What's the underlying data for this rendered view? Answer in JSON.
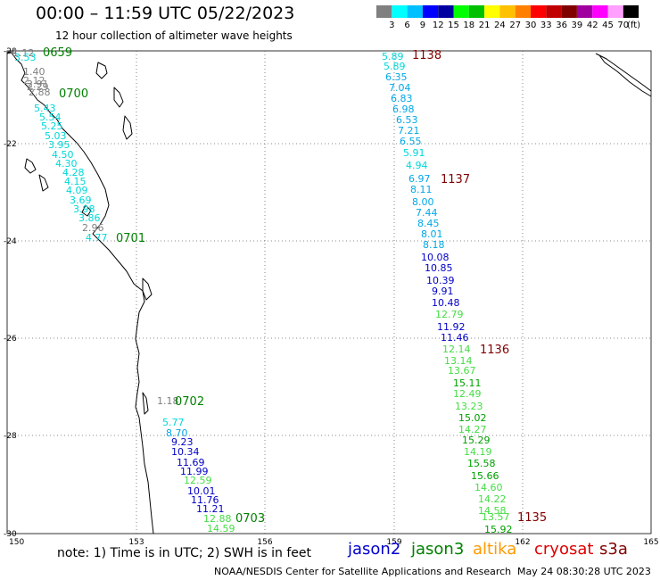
{
  "title": "00:00 – 11:59 UTC 05/22/2023",
  "subtitle": "12 hour collection of altimeter wave heights",
  "legend": {
    "unit": "(ft)",
    "levels": [
      "3",
      "6",
      "9",
      "12",
      "15",
      "18",
      "21",
      "24",
      "27",
      "30",
      "33",
      "36",
      "39",
      "42",
      "45",
      "70"
    ],
    "colors": [
      "#808080",
      "#00ffff",
      "#00c0ff",
      "#0000ff",
      "#0000a0",
      "#00ff00",
      "#00c000",
      "#ffff00",
      "#ffc000",
      "#ff8000",
      "#ff0000",
      "#c00000",
      "#800000",
      "#a000a0",
      "#ff00ff",
      "#ffa0ff",
      "#000000"
    ]
  },
  "map": {
    "lon_labels": [
      "150",
      "153",
      "156",
      "159",
      "162",
      "165"
    ],
    "lat_labels": [
      "-20",
      "-22",
      "-24",
      "-26",
      "-28",
      "-30"
    ],
    "lon_range": [
      150,
      165
    ],
    "lat_range": [
      -20,
      -30
    ]
  },
  "passes": [
    {
      "time": "0659",
      "color": "#008000"
    },
    {
      "time": "0700",
      "color": "#008000"
    },
    {
      "time": "0701",
      "color": "#008000"
    },
    {
      "time": "0702",
      "color": "#008000"
    },
    {
      "time": "0703",
      "color": "#008000"
    },
    {
      "time": "1138",
      "color": "#800000"
    },
    {
      "time": "1137",
      "color": "#800000"
    },
    {
      "time": "1136",
      "color": "#800000"
    },
    {
      "time": "1135",
      "color": "#800000"
    }
  ],
  "wave_heights_west": [
    "1.12",
    "3.53",
    "1.40",
    "2.12",
    "2.29",
    "2.91",
    "2.88",
    "5.43",
    "5.54",
    "5.25",
    "5.03",
    "3.95",
    "4.50",
    "4.30",
    "4.28",
    "4.15",
    "4.09",
    "3.69",
    "3.98",
    "3.86",
    "2.96",
    "4.77",
    "1.18",
    "5.77",
    "8.70",
    "9.23",
    "10.34",
    "11.69",
    "11.99",
    "12.59",
    "10.01",
    "11.76",
    "11.21",
    "12.88",
    "14.59"
  ],
  "wave_heights_east": [
    "5.89",
    "5.89",
    "6.35",
    "7.04",
    "6.83",
    "6.98",
    "6.53",
    "7.21",
    "6.55",
    "5.91",
    "4.94",
    "6.97",
    "8.11",
    "8.00",
    "7.44",
    "8.45",
    "8.01",
    "8.18",
    "10.08",
    "10.85",
    "10.39",
    "9.91",
    "10.48",
    "12.79",
    "11.92",
    "11.46",
    "12.14",
    "13.14",
    "13.67",
    "15.11",
    "12.49",
    "13.23",
    "15.02",
    "14.27",
    "15.29",
    "14.19",
    "15.58",
    "15.66",
    "14.60",
    "14.22",
    "14.58",
    "13.57",
    "15.92"
  ],
  "footer": {
    "note": "note:  1) Time is in UTC;  2) SWH is in feet",
    "satellites": [
      {
        "name": "jason2",
        "color": "#0000d0"
      },
      {
        "name": "jason3",
        "color": "#008000"
      },
      {
        "name": "altika",
        "color": "#ff9900"
      },
      {
        "name": "cryosat",
        "color": "#e00000"
      },
      {
        "name": "s3a",
        "color": "#800000"
      }
    ],
    "credit": "NOAA/NESDIS Center for Satellite Applications and Research",
    "timestamp": "May 24 08:30:28 UTC 2023"
  }
}
